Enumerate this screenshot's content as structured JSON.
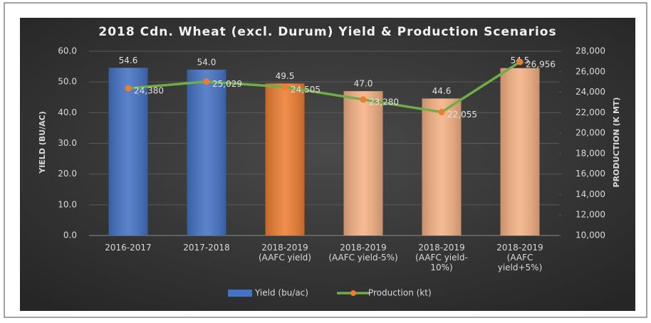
{
  "chart_data": {
    "type": "bar",
    "title": "2018 Cdn. Wheat (excl. Durum) Yield & Production Scenarios",
    "y_label": "YIELD (BU/AC)",
    "y2_label": "PRODUCTION (K MT)",
    "categories": [
      "2016-2017",
      "2017-2018",
      "2018-2019\n(AAFC yield)",
      "2018-2019\n(AAFC yield-5%)",
      "2018-2019\n(AAFC yield-\n10%)",
      "2018-2019\n(AAFC\nyield+5%)"
    ],
    "series": [
      {
        "name": "Yield (bu/ac)",
        "type": "bar",
        "color": "#4472c4",
        "colors": [
          "#4472c4",
          "#4472c4",
          "#ed7d31",
          "#f4b183",
          "#f4b183",
          "#f4b183"
        ],
        "values": [
          54.6,
          54.0,
          49.5,
          47.0,
          44.6,
          54.5
        ],
        "value_labels": [
          "54.6",
          "54.0",
          "49.5",
          "47.0",
          "44.6",
          "54.5"
        ]
      },
      {
        "name": "Production (kt)",
        "type": "line",
        "axis": "y2",
        "color": "#70ad47",
        "marker_color": "#ed7d31",
        "values": [
          24380,
          25029,
          24505,
          23280,
          22055,
          26956
        ],
        "value_labels": [
          "24,380",
          "25,029",
          "24,505",
          "23,280",
          "22,055",
          "26,956"
        ]
      }
    ],
    "ylim": [
      0,
      60
    ],
    "yticks": [
      {
        "value": 0,
        "label": "0.0"
      },
      {
        "value": 10,
        "label": "10.0"
      },
      {
        "value": 20,
        "label": "20.0"
      },
      {
        "value": 30,
        "label": "30.0"
      },
      {
        "value": 40,
        "label": "40.0"
      },
      {
        "value": 50,
        "label": "50.0"
      },
      {
        "value": 60,
        "label": "60.0"
      }
    ],
    "y2lim": [
      10000,
      28000
    ],
    "y2ticks": [
      {
        "value": 10000,
        "label": "10,000"
      },
      {
        "value": 12000,
        "label": "12,000"
      },
      {
        "value": 14000,
        "label": "14,000"
      },
      {
        "value": 16000,
        "label": "16,000"
      },
      {
        "value": 18000,
        "label": "18,000"
      },
      {
        "value": 20000,
        "label": "20,000"
      },
      {
        "value": 22000,
        "label": "22,000"
      },
      {
        "value": 24000,
        "label": "24,000"
      },
      {
        "value": 26000,
        "label": "26,000"
      },
      {
        "value": 28000,
        "label": "28,000"
      }
    ],
    "grid": true,
    "legend": "bottom"
  }
}
